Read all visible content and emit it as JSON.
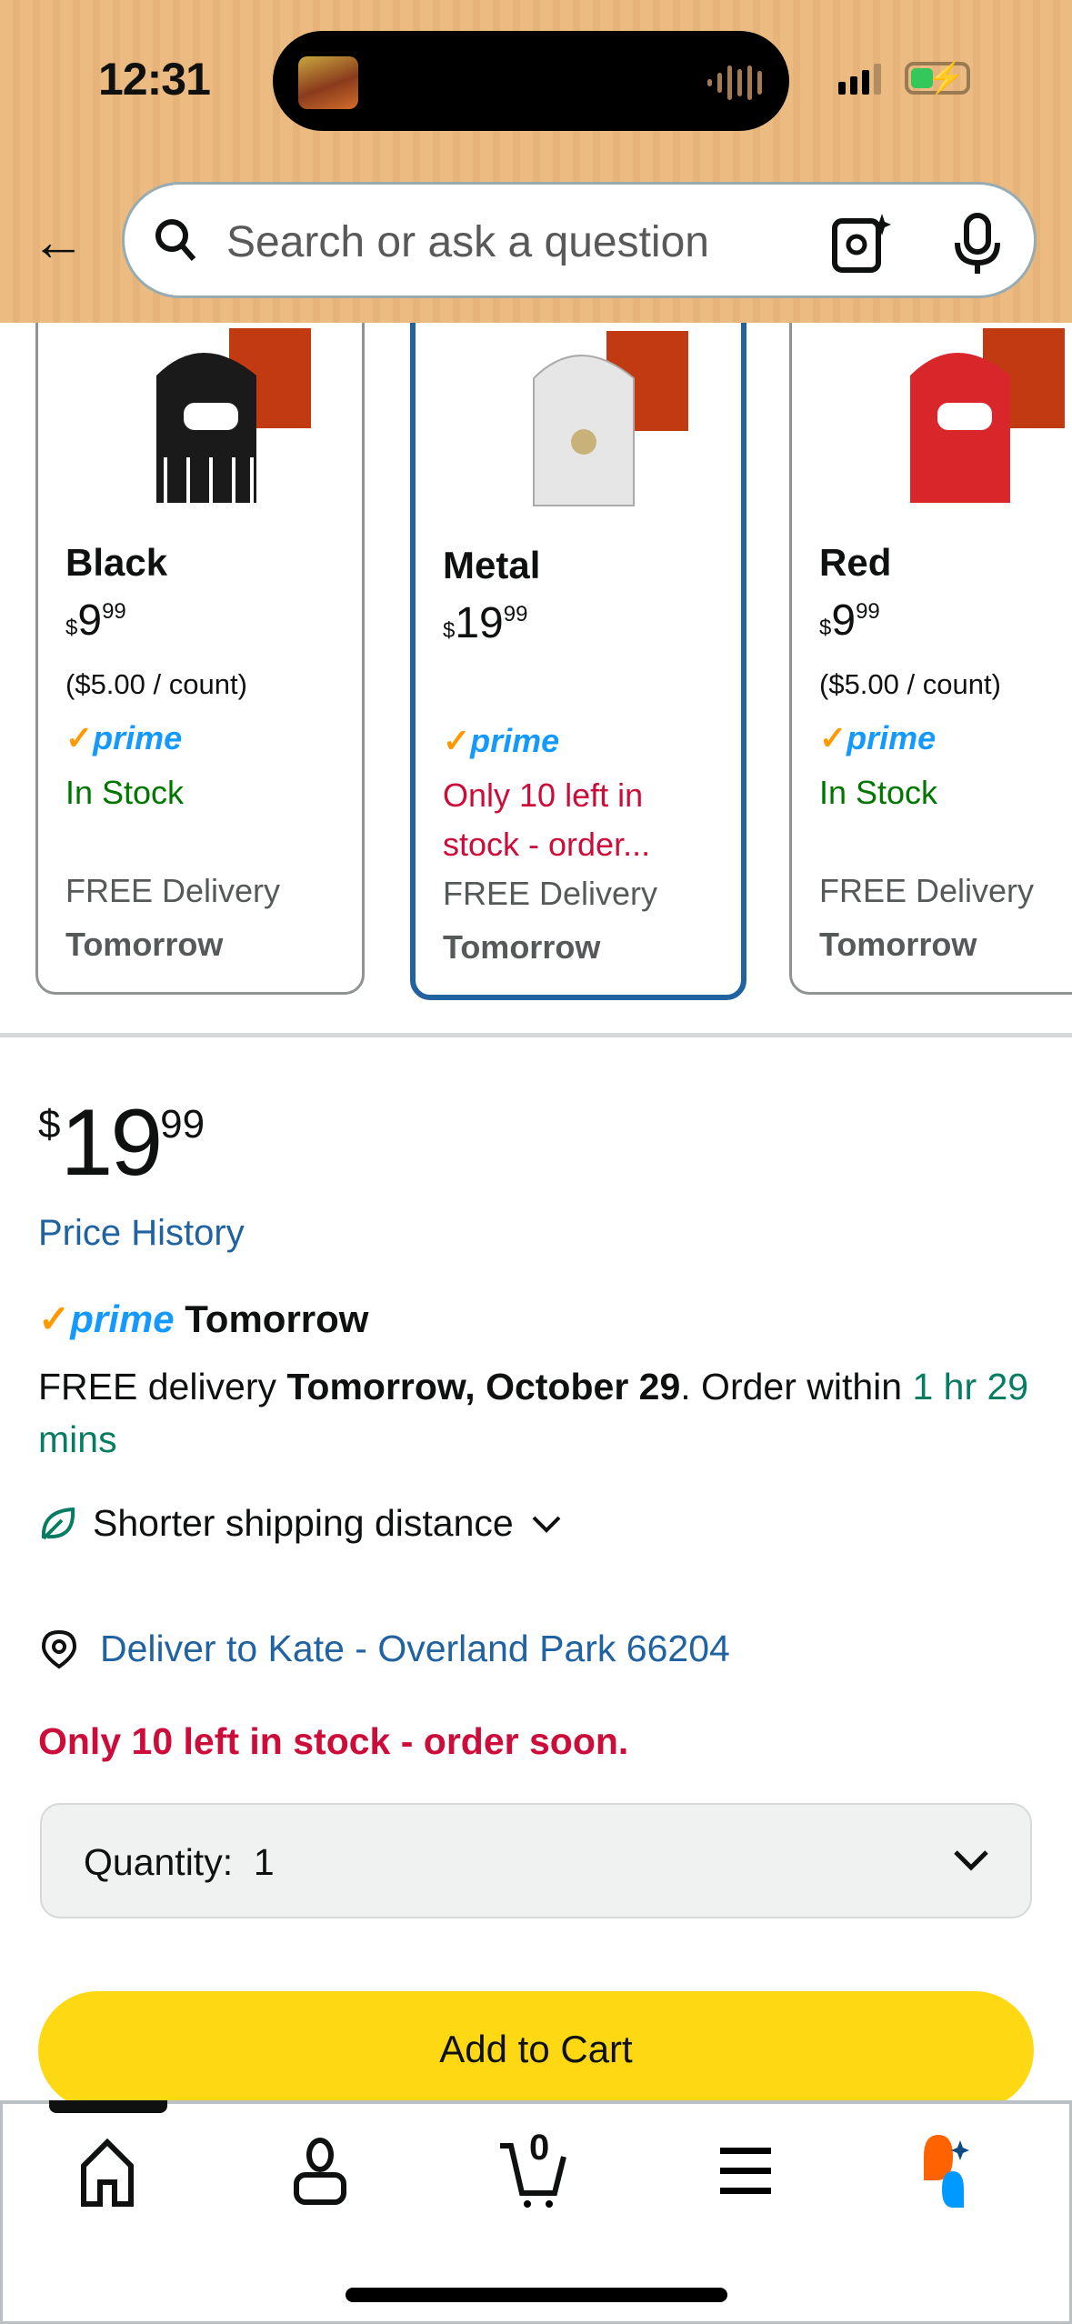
{
  "status_bar": {
    "time": "12:31"
  },
  "search": {
    "placeholder": "Search or ask a question"
  },
  "variants": [
    {
      "name": "Black",
      "price_whole": "9",
      "price_fraction": "99",
      "currency": "$",
      "unit_price": "($5.00 / count)",
      "prime": "prime",
      "stock": "In Stock",
      "delivery": "FREE Delivery",
      "delivery_day": "Tomorrow",
      "selected": false,
      "color": "#1a1a1a"
    },
    {
      "name": "Metal",
      "price_whole": "19",
      "price_fraction": "99",
      "currency": "$",
      "unit_price": "",
      "prime": "prime",
      "stock": "Only 10 left in stock - order...",
      "delivery": "FREE Delivery",
      "delivery_day": "Tomorrow",
      "selected": true,
      "color": "#d8d8d8"
    },
    {
      "name": "Red",
      "price_whole": "9",
      "price_fraction": "99",
      "currency": "$",
      "unit_price": "($5.00 / count)",
      "prime": "prime",
      "stock": "In Stock",
      "delivery": "FREE Delivery",
      "delivery_day": "Tomorrow",
      "selected": false,
      "color": "#d9262b"
    }
  ],
  "product": {
    "currency": "$",
    "price_whole": "19",
    "price_fraction": "99",
    "price_history": "Price History",
    "prime_label": "prime",
    "prime_day": "Tomorrow",
    "delivery_prefix": "FREE delivery ",
    "delivery_date": "Tomorrow, October 29",
    "delivery_mid": ". Order within ",
    "delivery_countdown": "1 hr 29 mins",
    "shorter_shipping": "Shorter shipping distance",
    "deliver_to": "Deliver to Kate - Overland Park 66204",
    "low_stock": "Only 10 left in stock - order soon.",
    "quantity_label": "Quantity:",
    "quantity_value": "1",
    "add_to_cart": "Add to Cart"
  },
  "bottom_nav": {
    "cart_count": "0",
    "items": [
      "home-icon",
      "account-icon",
      "cart-icon",
      "menu-icon",
      "rufus-icon"
    ]
  },
  "colors": {
    "link": "#2162a1",
    "prime": "#1399ff",
    "in_stock": "#007600",
    "low_stock": "#cc0c39",
    "add_to_cart": "#ffd814",
    "selected_border": "#2162a1"
  }
}
